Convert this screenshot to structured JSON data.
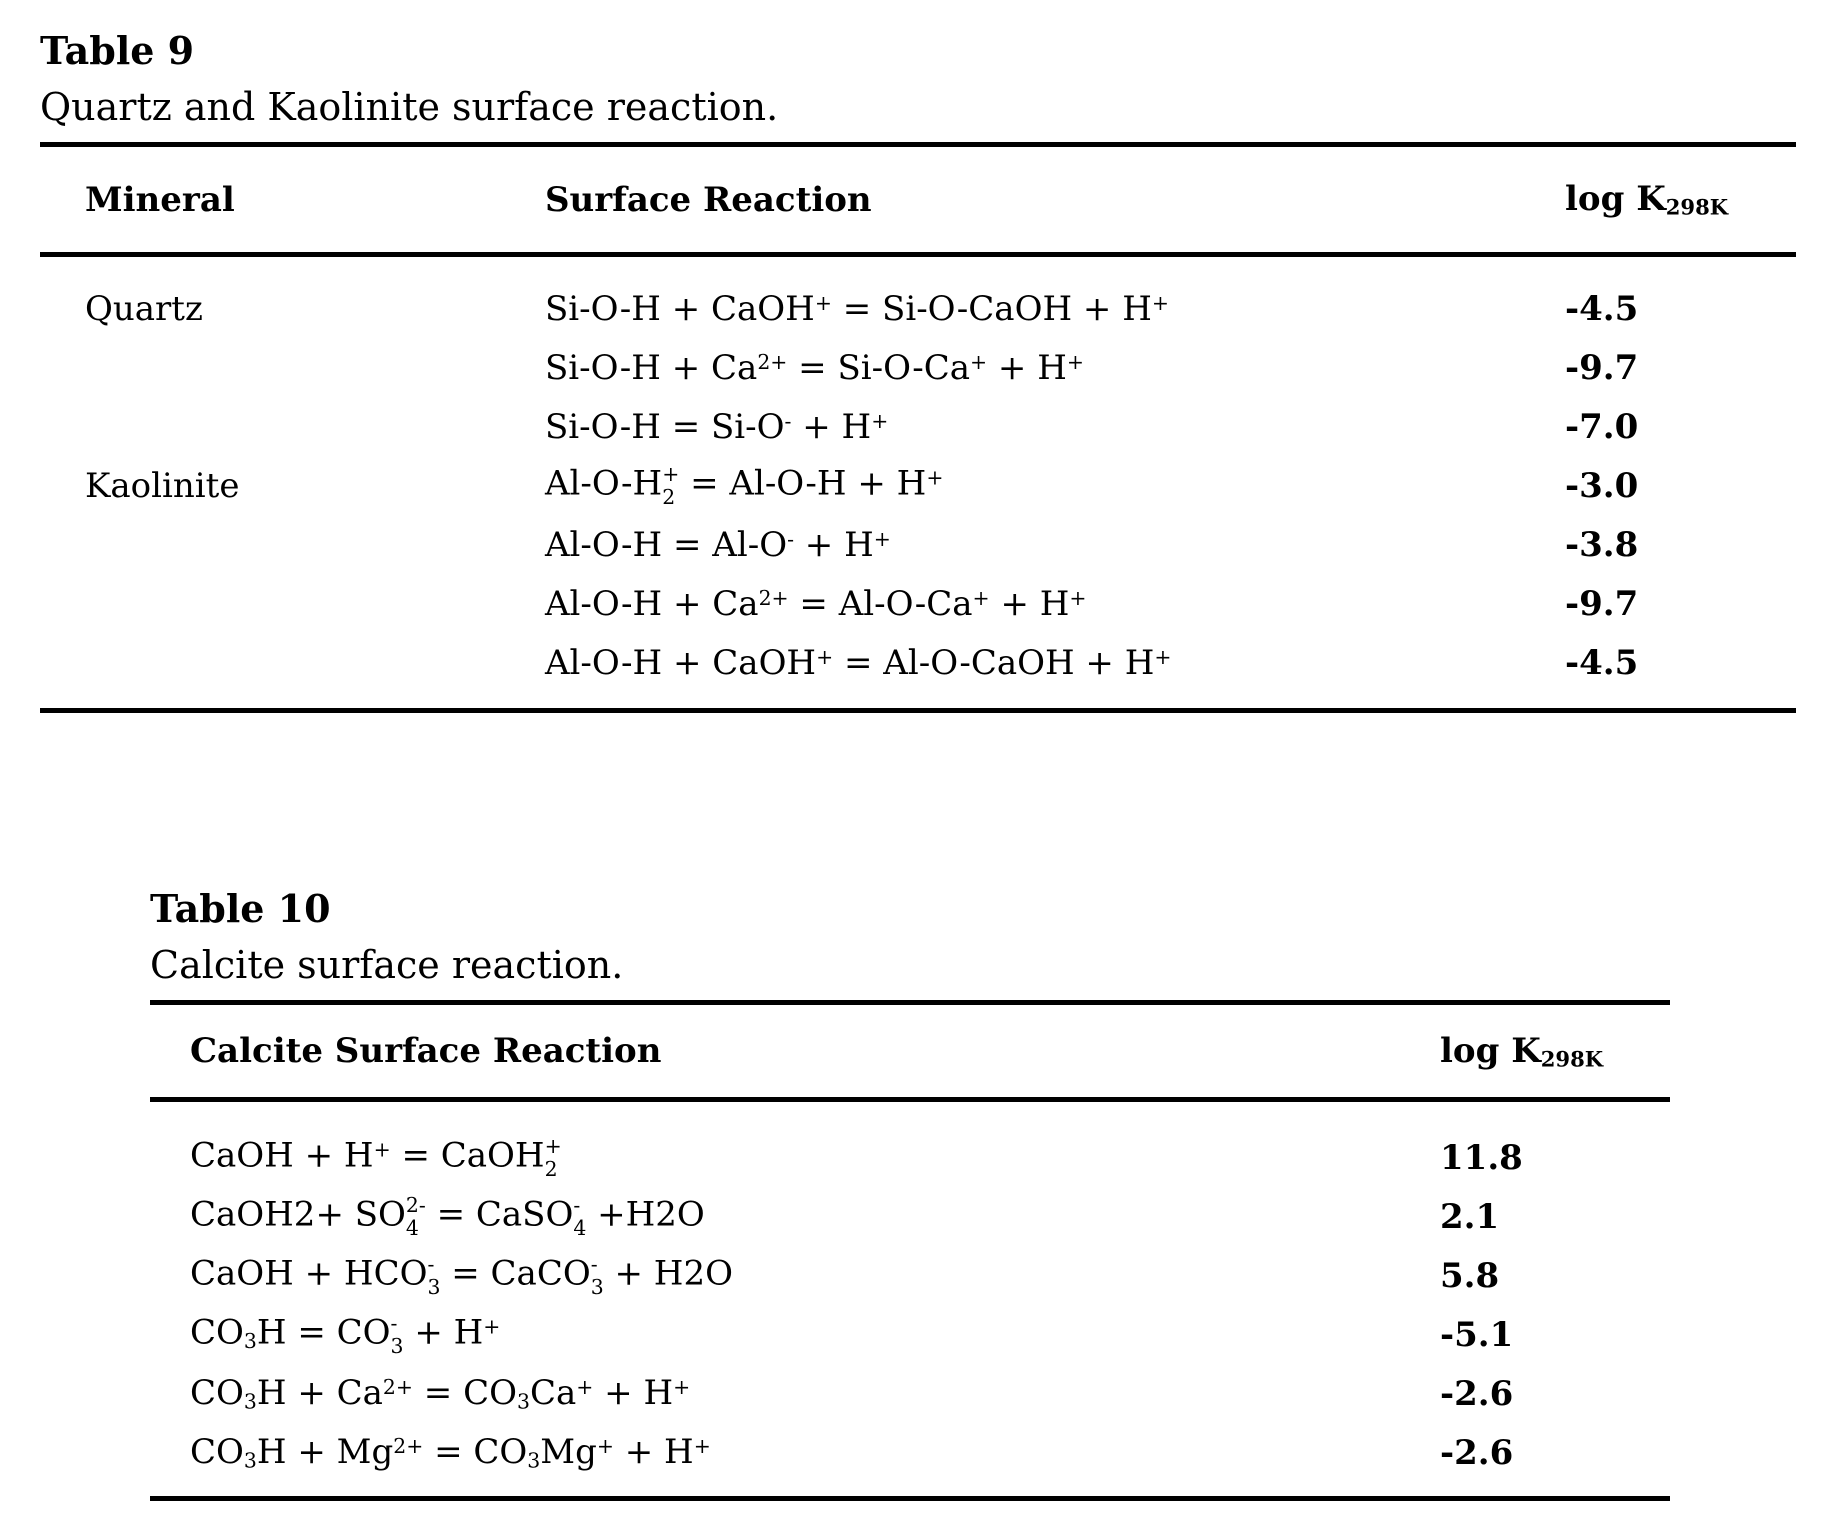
{
  "table9": {
    "title": "Table 9",
    "caption": "Quartz and Kaolinite surface reaction.",
    "headers": {
      "mineral": "Mineral",
      "reaction": "Surface Reaction",
      "logk_text": "log K",
      "logk_sub": "298K"
    },
    "rows": [
      {
        "mineral": "Quartz",
        "logk": "-4.5",
        "reaction": [
          [
            "t",
            "Si-O-H + CaOH"
          ],
          [
            "sup",
            "+"
          ],
          [
            "t",
            " = Si-O-CaOH + H"
          ],
          [
            "sup",
            "+"
          ]
        ]
      },
      {
        "mineral": "",
        "logk": "-9.7",
        "reaction": [
          [
            "t",
            "Si-O-H + Ca"
          ],
          [
            "sup",
            "2+"
          ],
          [
            "t",
            " = Si-O-Ca"
          ],
          [
            "sup",
            "+"
          ],
          [
            "t",
            " + H"
          ],
          [
            "sup",
            "+"
          ]
        ]
      },
      {
        "mineral": "",
        "logk": "-7.0",
        "reaction": [
          [
            "t",
            "Si-O-H = Si-O"
          ],
          [
            "sup",
            "-"
          ],
          [
            "t",
            " + H"
          ],
          [
            "sup",
            "+"
          ]
        ]
      },
      {
        "mineral": "Kaolinite",
        "logk": "-3.0",
        "reaction": [
          [
            "t",
            "Al-O-H"
          ],
          [
            "ss",
            "+",
            "2"
          ],
          [
            "t",
            " = Al-O-H + H"
          ],
          [
            "sup",
            "+"
          ]
        ]
      },
      {
        "mineral": "",
        "logk": "-3.8",
        "reaction": [
          [
            "t",
            "Al-O-H = Al-O"
          ],
          [
            "sup",
            "-"
          ],
          [
            "t",
            " + H"
          ],
          [
            "sup",
            "+"
          ]
        ]
      },
      {
        "mineral": "",
        "logk": "-9.7",
        "reaction": [
          [
            "t",
            "Al-O-H + Ca"
          ],
          [
            "sup",
            "2+"
          ],
          [
            "t",
            " = Al-O-Ca"
          ],
          [
            "sup",
            "+"
          ],
          [
            "t",
            " + H"
          ],
          [
            "sup",
            "+"
          ]
        ]
      },
      {
        "mineral": "",
        "logk": "-4.5",
        "reaction": [
          [
            "t",
            "Al-O-H + CaOH"
          ],
          [
            "sup",
            "+"
          ],
          [
            "t",
            " = Al-O-CaOH + H"
          ],
          [
            "sup",
            "+"
          ]
        ]
      }
    ]
  },
  "table10": {
    "title": "Table 10",
    "caption": "Calcite surface reaction.",
    "headers": {
      "reaction": "Calcite Surface Reaction",
      "logk_text": "log K",
      "logk_sub": "298K"
    },
    "rows": [
      {
        "logk": "11.8",
        "reaction": [
          [
            "t",
            "CaOH + H"
          ],
          [
            "sup",
            "+"
          ],
          [
            "t",
            " = CaOH"
          ],
          [
            "ss",
            "+",
            "2"
          ]
        ]
      },
      {
        "logk": "2.1",
        "reaction": [
          [
            "t",
            "CaOH2+ SO"
          ],
          [
            "ss",
            "2-",
            "4"
          ],
          [
            "t",
            " = CaSO"
          ],
          [
            "ss",
            "-",
            "4"
          ],
          [
            "t",
            " +H2O"
          ]
        ]
      },
      {
        "logk": "5.8",
        "reaction": [
          [
            "t",
            "CaOH + HCO"
          ],
          [
            "ss",
            "-",
            "3"
          ],
          [
            "t",
            " = CaCO"
          ],
          [
            "ss",
            "-",
            "3"
          ],
          [
            "t",
            " + H2O"
          ]
        ]
      },
      {
        "logk": "-5.1",
        "reaction": [
          [
            "t",
            "CO"
          ],
          [
            "sub",
            "3"
          ],
          [
            "t",
            "H = CO"
          ],
          [
            "ss",
            "-",
            "3"
          ],
          [
            "t",
            " + H"
          ],
          [
            "sup",
            "+"
          ]
        ]
      },
      {
        "logk": "-2.6",
        "reaction": [
          [
            "t",
            "CO"
          ],
          [
            "sub",
            "3"
          ],
          [
            "t",
            "H + Ca"
          ],
          [
            "sup",
            "2+"
          ],
          [
            "t",
            " = CO"
          ],
          [
            "sub",
            "3"
          ],
          [
            "t",
            "Ca"
          ],
          [
            "sup",
            "+"
          ],
          [
            "t",
            " + H"
          ],
          [
            "sup",
            "+"
          ]
        ]
      },
      {
        "logk": "-2.6",
        "reaction": [
          [
            "t",
            "CO"
          ],
          [
            "sub",
            "3"
          ],
          [
            "t",
            "H + Mg"
          ],
          [
            "sup",
            "2+"
          ],
          [
            "t",
            " = CO"
          ],
          [
            "sub",
            "3"
          ],
          [
            "t",
            "Mg"
          ],
          [
            "sup",
            "+"
          ],
          [
            "t",
            " + H"
          ],
          [
            "sup",
            "+"
          ]
        ]
      }
    ]
  }
}
